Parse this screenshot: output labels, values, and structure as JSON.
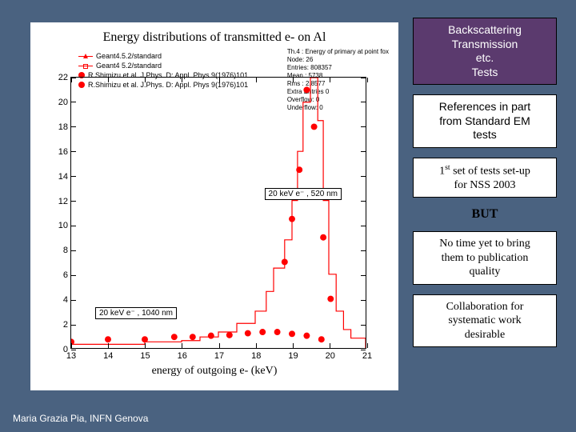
{
  "footer": "Maria Grazia Pia, INFN Genova",
  "chart": {
    "title": "Energy distributions of transmitted e- on Al",
    "xlabel": "energy of outgoing e- (keV)",
    "xlim": [
      13,
      21
    ],
    "ylim": [
      0,
      22
    ],
    "xticks": [
      13,
      14,
      15,
      16,
      17,
      18,
      19,
      20,
      21
    ],
    "yticks": [
      0,
      2,
      4,
      6,
      8,
      10,
      12,
      14,
      16,
      18,
      20,
      22
    ],
    "legend": {
      "l1": "Geant4.5.2/standard",
      "l2": "Geant4 5.2/standard",
      "l3": "R.Shimizu et al. J.Phys. D: Appl. Phys 9(1976)101",
      "l4": "R.Shimizu et al. J.Phys. D: Appl. Phys 9(1976)101"
    },
    "stats": {
      "s1": "Th.4 : Energy of primary at point fox",
      "s2": "Node: 26",
      "s3": "Entries: 808357",
      "s4": "Mean : 5738",
      "s5": "Rms : 2.8577",
      "s6": "Extra Entries 0",
      "s7": "Overflow: 0",
      "s8": "Underflow: 0"
    },
    "insets": {
      "a": "20 keV e⁻ , 520 nm",
      "b": "20 keV e⁻ , 1040 nm"
    },
    "hist_color": "#ff0000",
    "histogram": [
      [
        13.0,
        0.3
      ],
      [
        14.0,
        0.3
      ],
      [
        15.0,
        0.5
      ],
      [
        16.0,
        0.6
      ],
      [
        16.5,
        0.9
      ],
      [
        17.0,
        1.3
      ],
      [
        17.5,
        2.0
      ],
      [
        18.0,
        3.0
      ],
      [
        18.3,
        4.6
      ],
      [
        18.5,
        6.5
      ],
      [
        18.8,
        8.8
      ],
      [
        19.0,
        12.0
      ],
      [
        19.15,
        16.0
      ],
      [
        19.3,
        20.0
      ],
      [
        19.5,
        22.0
      ],
      [
        19.7,
        18.5
      ],
      [
        19.85,
        12.0
      ],
      [
        20.0,
        6.0
      ],
      [
        20.2,
        3.0
      ],
      [
        20.4,
        1.5
      ],
      [
        20.6,
        0.8
      ],
      [
        21.0,
        0.2
      ]
    ],
    "dots_up": [
      [
        18.8,
        7.0
      ],
      [
        19.0,
        10.5
      ],
      [
        19.2,
        14.5
      ],
      [
        19.4,
        21.0
      ],
      [
        19.6,
        18.0
      ],
      [
        19.85,
        9.0
      ],
      [
        20.05,
        4.0
      ]
    ],
    "dots_low": [
      [
        13.0,
        0.5
      ],
      [
        14.0,
        0.7
      ],
      [
        15.0,
        0.7
      ],
      [
        15.8,
        0.9
      ],
      [
        16.3,
        0.9
      ],
      [
        16.8,
        1.0
      ],
      [
        17.3,
        1.05
      ],
      [
        17.8,
        1.2
      ],
      [
        18.2,
        1.3
      ],
      [
        18.6,
        1.3
      ],
      [
        19.0,
        1.15
      ],
      [
        19.4,
        1.0
      ],
      [
        19.8,
        0.7
      ]
    ]
  },
  "right": {
    "box1": {
      "l1": "Backscattering",
      "l2": "Transmission",
      "l3": "etc.",
      "l4": "Tests"
    },
    "ref": {
      "l1": "References in part",
      "l2": "from Standard EM",
      "l3": "tests"
    },
    "first": {
      "pre": "1",
      "sup": "st",
      "post": " set of tests set-up",
      "l2": "for NSS 2003"
    },
    "but": "BUT",
    "pub": {
      "l1": "No time yet to bring",
      "l2": "them to publication",
      "l3": "quality"
    },
    "collab": {
      "l1": "Collaboration for",
      "l2": "systematic work",
      "l3": "desirable"
    }
  }
}
